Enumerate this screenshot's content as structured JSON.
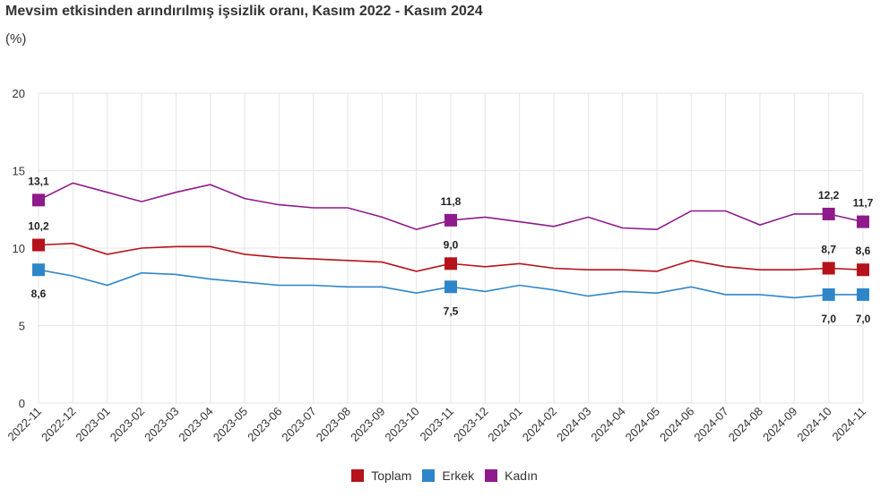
{
  "chart_data": {
    "type": "line",
    "title": "Mevsim etkisinden arındırılmış işsizlik oranı, Kasım 2022 - Kasım 2024",
    "ylabel": "(%)",
    "ylim": [
      0,
      20
    ],
    "yticks": [
      "0",
      "5",
      "10",
      "15",
      "20"
    ],
    "grid": true,
    "legend_position": "bottom",
    "categories": [
      "2022-11",
      "2022-12",
      "2023-01",
      "2023-02",
      "2023-03",
      "2023-04",
      "2023-05",
      "2023-06",
      "2023-07",
      "2023-08",
      "2023-09",
      "2023-10",
      "2023-11",
      "2023-12",
      "2024-01",
      "2024-02",
      "2024-03",
      "2024-04",
      "2024-05",
      "2024-06",
      "2024-07",
      "2024-08",
      "2024-09",
      "2024-10",
      "2024-11"
    ],
    "series": [
      {
        "name": "Toplam",
        "color": "#b5121b",
        "values": [
          10.2,
          10.3,
          9.6,
          10.0,
          10.1,
          10.1,
          9.6,
          9.4,
          9.3,
          9.2,
          9.1,
          8.5,
          9.0,
          8.8,
          9.0,
          8.7,
          8.6,
          8.6,
          8.5,
          9.2,
          8.8,
          8.6,
          8.6,
          8.7,
          8.6
        ],
        "labels": [
          {
            "index": 0,
            "text": "10,2"
          },
          {
            "index": 12,
            "text": "9,0"
          },
          {
            "index": 23,
            "text": "8,7"
          },
          {
            "index": 24,
            "text": "8,6"
          }
        ]
      },
      {
        "name": "Erkek",
        "color": "#2e86c8",
        "values": [
          8.6,
          8.2,
          7.6,
          8.4,
          8.3,
          8.0,
          7.8,
          7.6,
          7.6,
          7.5,
          7.5,
          7.1,
          7.5,
          7.2,
          7.6,
          7.3,
          6.9,
          7.2,
          7.1,
          7.5,
          7.0,
          7.0,
          6.8,
          7.0,
          7.0
        ],
        "labels": [
          {
            "index": 0,
            "text": "8,6"
          },
          {
            "index": 12,
            "text": "7,5"
          },
          {
            "index": 23,
            "text": "7,0"
          },
          {
            "index": 24,
            "text": "7,0"
          }
        ]
      },
      {
        "name": "Kadın",
        "color": "#8e1a8c",
        "values": [
          13.1,
          14.2,
          13.6,
          13.0,
          13.6,
          14.1,
          13.2,
          12.8,
          12.6,
          12.6,
          12.0,
          11.2,
          11.8,
          12.0,
          11.7,
          11.4,
          12.0,
          11.3,
          11.2,
          12.4,
          12.4,
          11.5,
          12.2,
          12.2,
          11.7
        ],
        "labels": [
          {
            "index": 0,
            "text": "13,1"
          },
          {
            "index": 12,
            "text": "11,8"
          },
          {
            "index": 23,
            "text": "12,2"
          },
          {
            "index": 24,
            "text": "11,7"
          }
        ]
      }
    ]
  }
}
